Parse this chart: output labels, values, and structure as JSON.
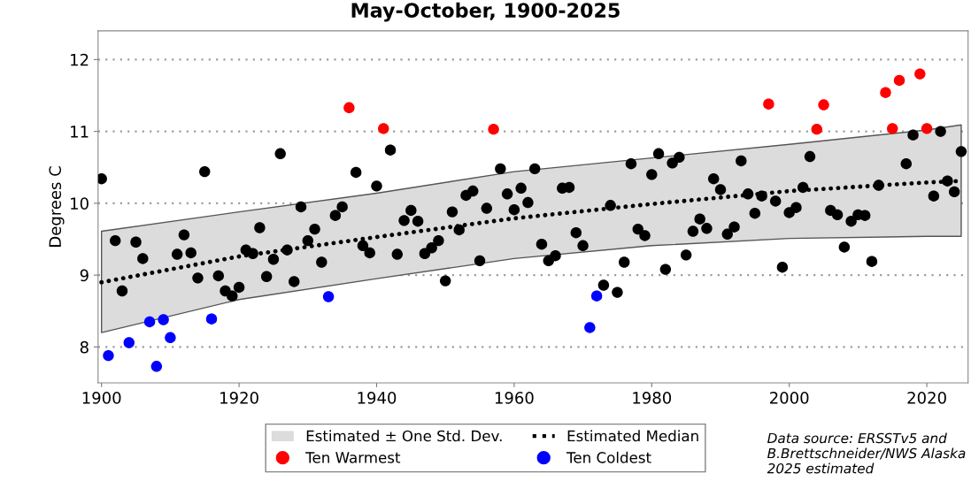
{
  "chart_data": {
    "type": "scatter",
    "title": "May-October, 1900-2025",
    "ylabel": "Degrees C",
    "xlim": [
      1899.5,
      2026
    ],
    "xticks": [
      1900,
      1920,
      1940,
      1960,
      1980,
      2000,
      2020
    ],
    "ylim": [
      7.5,
      12.4
    ],
    "yticks": [
      8,
      9,
      10,
      11,
      12
    ],
    "grid": "y",
    "legend": "bottom",
    "annotations": [
      "Data source: ERSSTv5 and\nB.Brettschneider/NWS Alaska\n2025 estimated"
    ],
    "series": [
      {
        "name": "Estimated ± One Std. Dev.",
        "type": "area",
        "color": "#dcdcdc"
      },
      {
        "name": "Estimated Median",
        "type": "line",
        "line_style": "dotted",
        "color": "#000000",
        "x": [
          1900,
          1920,
          1940,
          1960,
          1980,
          2000,
          2020,
          2025
        ],
        "values": [
          8.9,
          9.26,
          9.53,
          9.79,
          9.99,
          10.17,
          10.29,
          10.31
        ],
        "lower": [
          8.2,
          8.66,
          8.95,
          9.23,
          9.41,
          9.51,
          9.54,
          9.54
        ],
        "upper": [
          9.61,
          9.88,
          10.14,
          10.44,
          10.63,
          10.82,
          11.02,
          11.09
        ]
      },
      {
        "marker": "circle",
        "color": "#000000",
        "x": [
          1900,
          1902,
          1903,
          1905,
          1906,
          1911,
          1912,
          1913,
          1914,
          1915,
          1917,
          1918,
          1919,
          1920,
          1921,
          1922,
          1923,
          1924,
          1925,
          1926,
          1927,
          1928,
          1929,
          1930,
          1931,
          1932,
          1934,
          1935,
          1937,
          1938,
          1939,
          1940,
          1942,
          1943,
          1944,
          1945,
          1946,
          1947,
          1948,
          1949,
          1950,
          1951,
          1952,
          1953,
          1954,
          1955,
          1956,
          1958,
          1959,
          1960,
          1961,
          1962,
          1963,
          1964,
          1965,
          1966,
          1967,
          1968,
          1969,
          1970,
          1973,
          1974,
          1975,
          1976,
          1977,
          1978,
          1979,
          1980,
          1981,
          1982,
          1983,
          1984,
          1985,
          1986,
          1987,
          1988,
          1989,
          1990,
          1991,
          1992,
          1993,
          1994,
          1995,
          1996,
          1998,
          1999,
          2000,
          2001,
          2002,
          2003,
          2006,
          2007,
          2008,
          2009,
          2010,
          2011,
          2012,
          2013,
          2017,
          2018,
          2021,
          2022,
          2023,
          2024,
          2025
        ],
        "values": [
          10.34,
          9.48,
          8.78,
          9.46,
          9.23,
          9.29,
          9.56,
          9.31,
          8.96,
          10.44,
          8.99,
          8.78,
          8.71,
          8.83,
          9.35,
          9.3,
          9.66,
          8.98,
          9.22,
          10.69,
          9.35,
          8.91,
          9.95,
          9.48,
          9.64,
          9.18,
          9.83,
          9.95,
          10.43,
          9.41,
          9.31,
          10.24,
          10.74,
          9.29,
          9.76,
          9.9,
          9.75,
          9.3,
          9.38,
          9.48,
          8.92,
          9.88,
          9.63,
          10.11,
          10.17,
          9.2,
          9.93,
          10.48,
          10.13,
          9.91,
          10.21,
          10.01,
          10.48,
          9.43,
          9.2,
          9.27,
          10.21,
          10.22,
          9.59,
          9.41,
          8.86,
          9.97,
          8.76,
          9.18,
          10.55,
          9.64,
          9.55,
          10.4,
          10.69,
          9.08,
          10.56,
          10.64,
          9.28,
          9.61,
          9.78,
          9.65,
          10.34,
          10.19,
          9.57,
          9.67,
          10.59,
          10.13,
          9.86,
          10.1,
          10.03,
          9.11,
          9.87,
          9.94,
          10.22,
          10.65,
          9.9,
          9.84,
          9.39,
          9.75,
          9.84,
          9.83,
          9.19,
          10.25,
          10.55,
          10.95,
          10.1,
          11.0,
          10.31,
          10.16,
          10.72
        ]
      },
      {
        "name": "Ten Warmest",
        "type": "scatter",
        "marker": "circle",
        "color": "#ff0000",
        "x": [
          1936,
          1941,
          1957,
          1997,
          2004,
          2005,
          2014,
          2015,
          2016,
          2019,
          2020
        ],
        "values": [
          11.33,
          11.04,
          11.03,
          11.38,
          11.03,
          11.37,
          11.54,
          11.04,
          11.71,
          11.8,
          11.04
        ]
      },
      {
        "name": "Ten Coldest",
        "type": "scatter",
        "marker": "circle",
        "color": "#0000ff",
        "x": [
          1901,
          1904,
          1907,
          1908,
          1909,
          1910,
          1916,
          1933,
          1971,
          1972
        ],
        "values": [
          7.88,
          8.06,
          8.35,
          7.73,
          8.38,
          8.13,
          8.39,
          8.7,
          8.27,
          8.71
        ]
      }
    ]
  }
}
